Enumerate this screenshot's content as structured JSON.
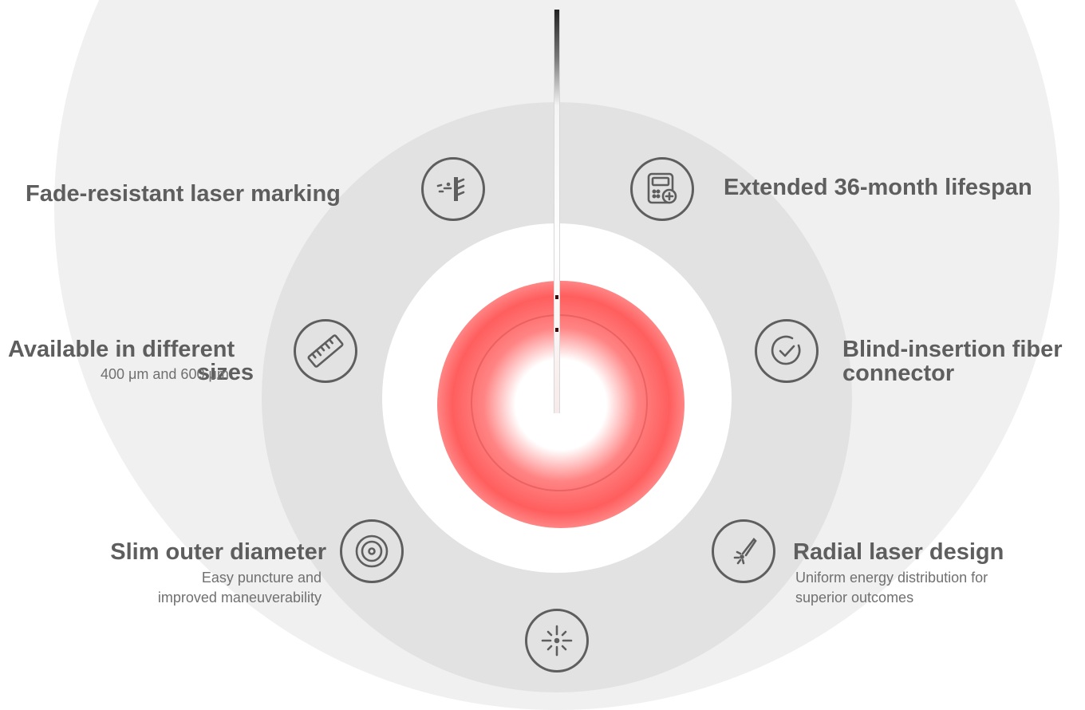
{
  "features": {
    "fade_resistant": {
      "title": "Fade-resistant laser marking"
    },
    "lifespan": {
      "title": "Extended 36-month lifespan"
    },
    "sizes": {
      "title_line1": "Available in different",
      "title_line2": "sizes",
      "subtitle": "400 μm and 600 μm"
    },
    "blind_insertion": {
      "title_line1": "Blind-insertion fiber",
      "title_line2": "connector"
    },
    "slim_diameter": {
      "title": "Slim outer diameter",
      "subtitle_line1": "Easy puncture and",
      "subtitle_line2": "improved maneuverability"
    },
    "radial_laser": {
      "title": "Radial laser design",
      "subtitle_line1": "Uniform energy distribution for",
      "subtitle_line2": "superior outcomes"
    }
  },
  "icons": [
    "laser-marking-icon",
    "lifespan-icon",
    "ruler-icon",
    "check-circle-icon",
    "concentric-circles-icon",
    "radial-laser-icon",
    "light-burst-icon"
  ],
  "colors": {
    "text": "#5e5e5e",
    "accent_glow": "#ff5555",
    "ring_outer": "#f0f0f0",
    "ring_mid": "#e2e2e2"
  }
}
